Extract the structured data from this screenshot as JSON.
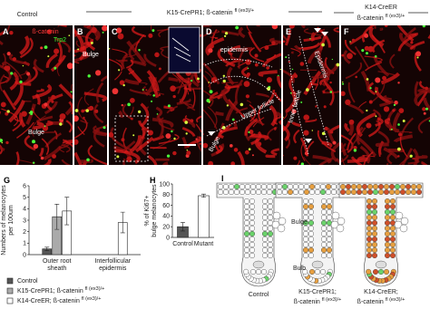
{
  "header": {
    "control": "Control",
    "k15": {
      "main": "K15-CrePR1; ß-catenin",
      "sup": "fl (ex3)/+"
    },
    "k14": {
      "line1": "K14-CreER",
      "main": "ß-catenin",
      "sup": "fl (ex3)/+"
    }
  },
  "panels": [
    {
      "letter": "A",
      "labels": [
        "ß-catenin",
        "Trp2",
        "Bulge"
      ]
    },
    {
      "letter": "B",
      "labels": [
        "Bulge"
      ]
    },
    {
      "letter": "C",
      "labels": [
        "ß-cat",
        "Trp2"
      ]
    },
    {
      "letter": "D",
      "labels": [
        "epidermis",
        "Upper follicle",
        "Bulge"
      ]
    },
    {
      "letter": "E",
      "labels": [
        "Epidermis",
        "Inner follicle"
      ]
    },
    {
      "letter": "F"
    }
  ],
  "chart_data": [
    {
      "type": "bar",
      "letter": "G",
      "y_label": [
        "Numbers of melanocytes",
        "per 100um"
      ],
      "categories": [
        [
          "Outer root",
          "sheath"
        ],
        [
          "Interfollicular",
          "epidermis"
        ]
      ],
      "ylim": [
        0,
        6
      ],
      "yticks": [
        0,
        1,
        2,
        3,
        4,
        5,
        6
      ],
      "series": [
        {
          "name": "Control",
          "color": "#555555",
          "values": [
            0.5,
            null
          ],
          "errors": [
            0.15,
            null
          ]
        },
        {
          "name": "K15-CrePR1; ß-catenin",
          "name_sup": "fl (ex3)/+",
          "color": "#aaaaaa",
          "values": [
            3.3,
            null
          ],
          "errors": [
            1.1,
            null
          ]
        },
        {
          "name": "K14-CreER; ß-catenin",
          "name_sup": "fl (ex3)/+",
          "color": "#ffffff",
          "values": [
            3.8,
            2.8
          ],
          "errors": [
            1.2,
            0.9
          ]
        }
      ]
    },
    {
      "type": "bar",
      "letter": "H",
      "y_label": [
        "% of Ki67+",
        "bulge melanocytes"
      ],
      "categories": [
        "Control",
        "Mutant"
      ],
      "ylim": [
        0,
        100
      ],
      "yticks": [
        0,
        20,
        40,
        60,
        80,
        100
      ],
      "values": [
        20,
        78
      ],
      "errors": [
        8,
        3
      ],
      "colors": [
        "#555555",
        "#ffffff"
      ]
    }
  ],
  "schematic": {
    "letter": "I",
    "labels": [
      "Bulge",
      "Bulb"
    ],
    "captions": [
      {
        "main": "Control"
      },
      {
        "main": "K15-CrePR1;",
        "line2": "ß-catenin",
        "sup": "fl (ex3)/+"
      },
      {
        "main": "K14-CreER;",
        "line2": "ß-catenin",
        "sup": "fl (ex3)/+"
      }
    ]
  }
}
